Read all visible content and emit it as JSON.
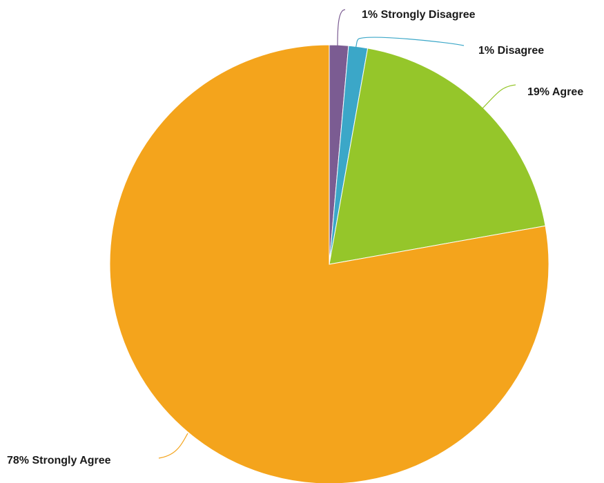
{
  "chart_data": {
    "type": "pie",
    "start_angle_deg": 0,
    "direction": "clockwise",
    "slices": [
      {
        "label": "1% Strongly Disagree",
        "category": "Strongly Disagree",
        "value": 1.4,
        "color": "#7B5C92"
      },
      {
        "label": "1% Disagree",
        "category": "Disagree",
        "value": 1.4,
        "color": "#3BA7C8"
      },
      {
        "label": "19% Agree",
        "category": "Agree",
        "value": 19.4,
        "color": "#95C62A"
      },
      {
        "label": "78% Strongly Agree",
        "category": "Strongly Agree",
        "value": 77.8,
        "color": "#F4A41C"
      }
    ],
    "legend": "none",
    "title": ""
  }
}
